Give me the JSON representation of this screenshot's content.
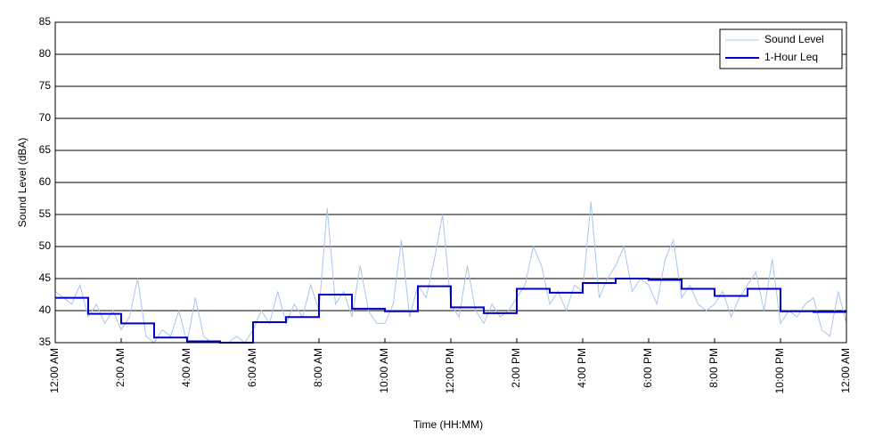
{
  "chart_data": {
    "type": "line",
    "xlabel": "Time (HH:MM)",
    "ylabel": "Sound Level (dBA)",
    "xlim": [
      0,
      24
    ],
    "xticks": [
      {
        "value": 0,
        "label": "12:00 AM"
      },
      {
        "value": 2,
        "label": "2:00 AM"
      },
      {
        "value": 4,
        "label": "4:00 AM"
      },
      {
        "value": 6,
        "label": "6:00 AM"
      },
      {
        "value": 8,
        "label": "8:00 AM"
      },
      {
        "value": 10,
        "label": "10:00 AM"
      },
      {
        "value": 12,
        "label": "12:00 PM"
      },
      {
        "value": 14,
        "label": "2:00 PM"
      },
      {
        "value": 16,
        "label": "4:00 PM"
      },
      {
        "value": 18,
        "label": "6:00 PM"
      },
      {
        "value": 20,
        "label": "8:00 PM"
      },
      {
        "value": 22,
        "label": "10:00 PM"
      },
      {
        "value": 24,
        "label": "12:00 AM"
      }
    ],
    "ylim": [
      35,
      85
    ],
    "yticks": [
      35,
      40,
      45,
      50,
      55,
      60,
      65,
      70,
      75,
      80,
      85
    ],
    "grid": true,
    "legend": "upper right",
    "series": [
      {
        "name": "Sound Level",
        "color": "#a8c4f0",
        "step": false,
        "x": [
          0,
          0.25,
          0.5,
          0.75,
          1,
          1.25,
          1.5,
          1.75,
          2,
          2.25,
          2.5,
          2.75,
          3,
          3.25,
          3.5,
          3.75,
          4,
          4.25,
          4.5,
          4.75,
          5,
          5.25,
          5.5,
          5.75,
          6,
          6.25,
          6.5,
          6.75,
          7,
          7.25,
          7.5,
          7.75,
          8,
          8.25,
          8.5,
          8.75,
          9,
          9.25,
          9.5,
          9.75,
          10,
          10.25,
          10.5,
          10.75,
          11,
          11.25,
          11.5,
          11.75,
          12,
          12.25,
          12.5,
          12.75,
          13,
          13.25,
          13.5,
          13.75,
          14,
          14.25,
          14.5,
          14.75,
          15,
          15.25,
          15.5,
          15.75,
          16,
          16.25,
          16.5,
          16.75,
          17,
          17.25,
          17.5,
          17.75,
          18,
          18.25,
          18.5,
          18.75,
          19,
          19.25,
          19.5,
          19.75,
          20,
          20.25,
          20.5,
          20.75,
          21,
          21.25,
          21.5,
          21.75,
          22,
          22.25,
          22.5,
          22.75,
          23,
          23.25,
          23.5,
          23.75,
          24
        ],
        "values": [
          43,
          42,
          41,
          44,
          39,
          41,
          38,
          40,
          37,
          39,
          45,
          36,
          35,
          37,
          36,
          40,
          35,
          42,
          36,
          35,
          35,
          35,
          36,
          35,
          37,
          40,
          38,
          43,
          38,
          41,
          39,
          44,
          40,
          56,
          41,
          43,
          39,
          47,
          40,
          38,
          38,
          41,
          51,
          39,
          44,
          42,
          48,
          55,
          41,
          39,
          47,
          40,
          38,
          41,
          39,
          40,
          42,
          44,
          50,
          47,
          41,
          43,
          40,
          44,
          43,
          57,
          42,
          45,
          47,
          50,
          43,
          45,
          44,
          41,
          48,
          51,
          42,
          44,
          41,
          40,
          41,
          43,
          39,
          42,
          44,
          46,
          40,
          48,
          38,
          40,
          39,
          41,
          42,
          37,
          36,
          43,
          38
        ]
      },
      {
        "name": "1-Hour Leq",
        "color": "#0000cc",
        "step": true,
        "x": [
          0,
          1,
          2,
          3,
          4,
          5,
          6,
          7,
          8,
          9,
          10,
          11,
          12,
          13,
          14,
          15,
          16,
          17,
          18,
          19,
          20,
          21,
          22,
          23
        ],
        "values": [
          42,
          39.5,
          38,
          35.8,
          35.2,
          35,
          38.2,
          39,
          42.5,
          40.3,
          39.9,
          43.8,
          40.5,
          39.6,
          43.4,
          42.8,
          44.3,
          45,
          44.8,
          43.4,
          42.3,
          43.4,
          39.9,
          39.8
        ]
      }
    ]
  }
}
